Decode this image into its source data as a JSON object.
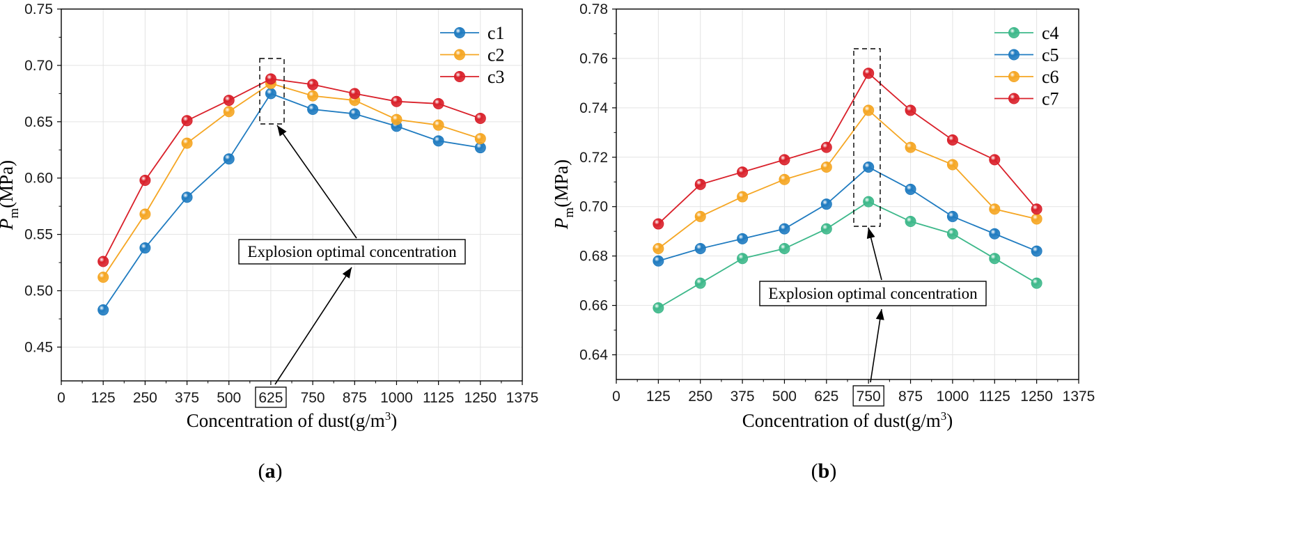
{
  "chart_data": [
    {
      "type": "line",
      "panel_label": "(a)",
      "panel_letter": "a",
      "xlabel_main": "Concentration of dust(g/m",
      "xlabel_sup": "3",
      "xlabel_tail": ")",
      "ylabel_main": "P",
      "ylabel_sub": "m",
      "ylabel_unit": "(MPa)",
      "xlim": [
        0,
        1375
      ],
      "ylim": [
        0.42,
        0.75
      ],
      "xticks": [
        0,
        125,
        250,
        375,
        500,
        625,
        750,
        875,
        1000,
        1125,
        1250,
        1375
      ],
      "yticks": [
        0.45,
        0.5,
        0.55,
        0.6,
        0.65,
        0.7,
        0.75
      ],
      "ytick_labels": [
        "0.45",
        "0.50",
        "0.55",
        "0.60",
        "0.65",
        "0.70",
        "0.75"
      ],
      "highlighted_x": 625,
      "grid": true,
      "legend_position": "top-right",
      "x": [
        125,
        250,
        375,
        500,
        625,
        750,
        875,
        1000,
        1125,
        1250
      ],
      "series": [
        {
          "name": "c1",
          "color": "#1f7bc0",
          "values": [
            0.483,
            0.538,
            0.583,
            0.617,
            0.675,
            0.661,
            0.657,
            0.646,
            0.633,
            0.627
          ]
        },
        {
          "name": "c2",
          "color": "#f5a623",
          "values": [
            0.512,
            0.568,
            0.631,
            0.659,
            0.684,
            0.673,
            0.669,
            0.652,
            0.647,
            0.635
          ]
        },
        {
          "name": "c3",
          "color": "#d9202a",
          "values": [
            0.526,
            0.598,
            0.651,
            0.669,
            0.688,
            0.683,
            0.675,
            0.668,
            0.666,
            0.653
          ]
        }
      ],
      "annotation": "Explosion optimal concentration"
    },
    {
      "type": "line",
      "panel_label": "(b)",
      "panel_letter": "b",
      "xlabel_main": "Concentration of dust(g/m",
      "xlabel_sup": "3",
      "xlabel_tail": ")",
      "ylabel_main": "P",
      "ylabel_sub": "m",
      "ylabel_unit": "(MPa)",
      "xlim": [
        0,
        1375
      ],
      "ylim": [
        0.63,
        0.78
      ],
      "xticks": [
        0,
        125,
        250,
        375,
        500,
        625,
        750,
        875,
        1000,
        1125,
        1250,
        1375
      ],
      "yticks": [
        0.64,
        0.66,
        0.68,
        0.7,
        0.72,
        0.74,
        0.76,
        0.78
      ],
      "ytick_labels": [
        "0.64",
        "0.66",
        "0.68",
        "0.70",
        "0.72",
        "0.74",
        "0.76",
        "0.78"
      ],
      "highlighted_x": 750,
      "grid": true,
      "legend_position": "top-right",
      "x": [
        125,
        250,
        375,
        500,
        625,
        750,
        875,
        1000,
        1125,
        1250
      ],
      "series": [
        {
          "name": "c4",
          "color": "#3db88a",
          "values": [
            0.659,
            0.669,
            0.679,
            0.683,
            0.691,
            0.702,
            0.694,
            0.689,
            0.679,
            0.669
          ]
        },
        {
          "name": "c5",
          "color": "#1f7bc0",
          "values": [
            0.678,
            0.683,
            0.687,
            0.691,
            0.701,
            0.716,
            0.707,
            0.696,
            0.689,
            0.682
          ]
        },
        {
          "name": "c6",
          "color": "#f5a623",
          "values": [
            0.683,
            0.696,
            0.704,
            0.711,
            0.716,
            0.739,
            0.724,
            0.717,
            0.699,
            0.695
          ]
        },
        {
          "name": "c7",
          "color": "#d9202a",
          "values": [
            0.693,
            0.709,
            0.714,
            0.719,
            0.724,
            0.754,
            0.739,
            0.727,
            0.719,
            0.699
          ]
        }
      ],
      "annotation": "Explosion optimal concentration"
    }
  ]
}
